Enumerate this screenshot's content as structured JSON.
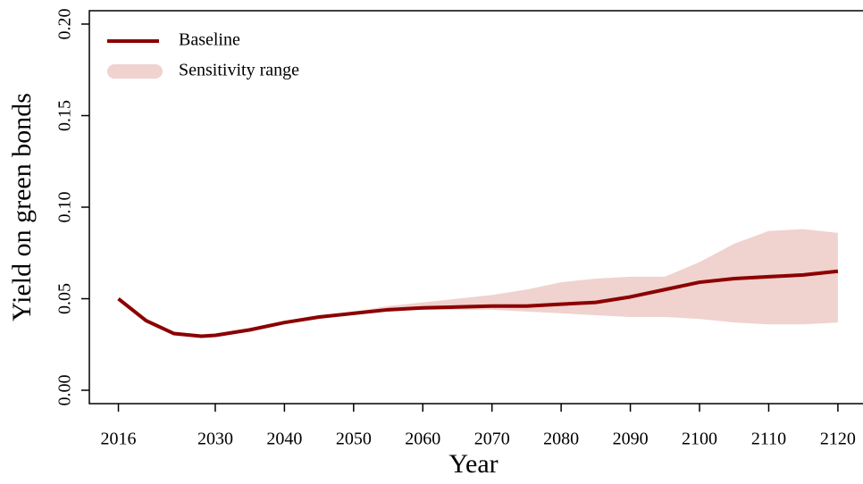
{
  "chart_data": {
    "type": "line",
    "x_label": "Year",
    "y_label": "Yield on green bonds",
    "x": [
      2016,
      2020,
      2024,
      2028,
      2030,
      2035,
      2040,
      2045,
      2050,
      2055,
      2060,
      2065,
      2070,
      2075,
      2080,
      2085,
      2090,
      2095,
      2100,
      2105,
      2110,
      2115,
      2120
    ],
    "series": [
      {
        "name": "Baseline",
        "color": "#8b0000",
        "values": [
          0.05,
          0.038,
          0.031,
          0.0295,
          0.03,
          0.033,
          0.037,
          0.04,
          0.042,
          0.044,
          0.045,
          0.0455,
          0.046,
          0.046,
          0.047,
          0.048,
          0.051,
          0.055,
          0.059,
          0.061,
          0.062,
          0.063,
          0.065
        ]
      }
    ],
    "range": {
      "name": "Sensitivity range",
      "color": "#f0d2ce",
      "lower": [
        null,
        null,
        null,
        null,
        null,
        null,
        null,
        0.04,
        0.042,
        0.044,
        0.044,
        0.044,
        0.044,
        0.043,
        0.042,
        0.041,
        0.04,
        0.04,
        0.039,
        0.037,
        0.036,
        0.036,
        0.037
      ],
      "upper": [
        null,
        null,
        null,
        null,
        null,
        null,
        null,
        0.041,
        0.043,
        0.046,
        0.048,
        0.05,
        0.052,
        0.055,
        0.059,
        0.061,
        0.062,
        0.062,
        0.07,
        0.08,
        0.087,
        0.088,
        0.086
      ]
    },
    "xlim": [
      2011.8,
      2123.5
    ],
    "xticks": [
      2016,
      2030,
      2040,
      2050,
      2060,
      2070,
      2080,
      2090,
      2100,
      2110,
      2120
    ],
    "ylim": [
      -0.0073,
      0.2073
    ],
    "yticks": [
      {
        "value": 0,
        "label": "0.00"
      },
      {
        "value": 0.05,
        "label": "0.05"
      },
      {
        "value": 0.1,
        "label": "0.10"
      },
      {
        "value": 0.15,
        "label": "0.15"
      },
      {
        "value": 0.2,
        "label": "0.20"
      }
    ],
    "legend": "top-left"
  }
}
